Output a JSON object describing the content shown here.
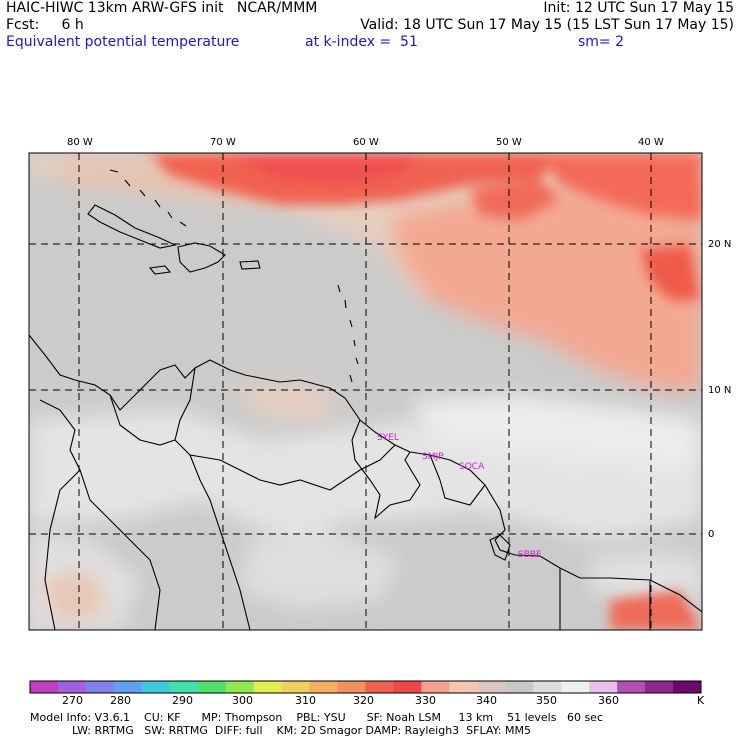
{
  "header": {
    "line1_left": "HAIC-HIWC 13km ARW-GFS init   NCAR/MMM",
    "line1_right": "Init: 12 UTC Sun 17 May 15",
    "line2_left": "Fcst:     6 h",
    "line2_right": "Valid: 18 UTC Sun 17 May 15 (15 LST Sun 17 May 15)",
    "line3_left": "Equivalent potential temperature",
    "line3_mid": "at k-index =  51",
    "line3_right": "sm= 2"
  },
  "map": {
    "lon_labels": [
      "80 W",
      "70 W",
      "60 W",
      "50 W",
      "40 W"
    ],
    "lat_labels": [
      "20 N",
      "10 N",
      "0"
    ],
    "stations": [
      "SYEL",
      "SMJP",
      "SOCA",
      "SBBE"
    ]
  },
  "colorbar": {
    "colors": [
      "#c040c0",
      "#a060e0",
      "#8080ee",
      "#60a0f0",
      "#40c8e0",
      "#40e0b0",
      "#50e070",
      "#90e850",
      "#e0ee50",
      "#f2d060",
      "#f4b060",
      "#f29060",
      "#f06050",
      "#f04848",
      "#f4a090",
      "#f4c8b0",
      "#dcc8c0",
      "#c8c8c8",
      "#dcdcdc",
      "#f0f0f0",
      "#e8c0e8",
      "#b050b0",
      "#8a2a8a",
      "#6a0a6a"
    ],
    "tick_labels": [
      "270",
      "280",
      "290",
      "300",
      "310",
      "320",
      "330",
      "340",
      "350",
      "360"
    ],
    "unit": "K"
  },
  "footer": {
    "line1": "Model Info: V3.6.1    CU: KF      MP: Thompson    PBL: YSU      SF: Noah LSM     13 km    51 levels   60 sec",
    "line2": "            LW: RRTMG   SW: RRTMG  DIFF: full    KM: 2D Smagor DAMP: Rayleigh3  SFLAY: MM5"
  }
}
